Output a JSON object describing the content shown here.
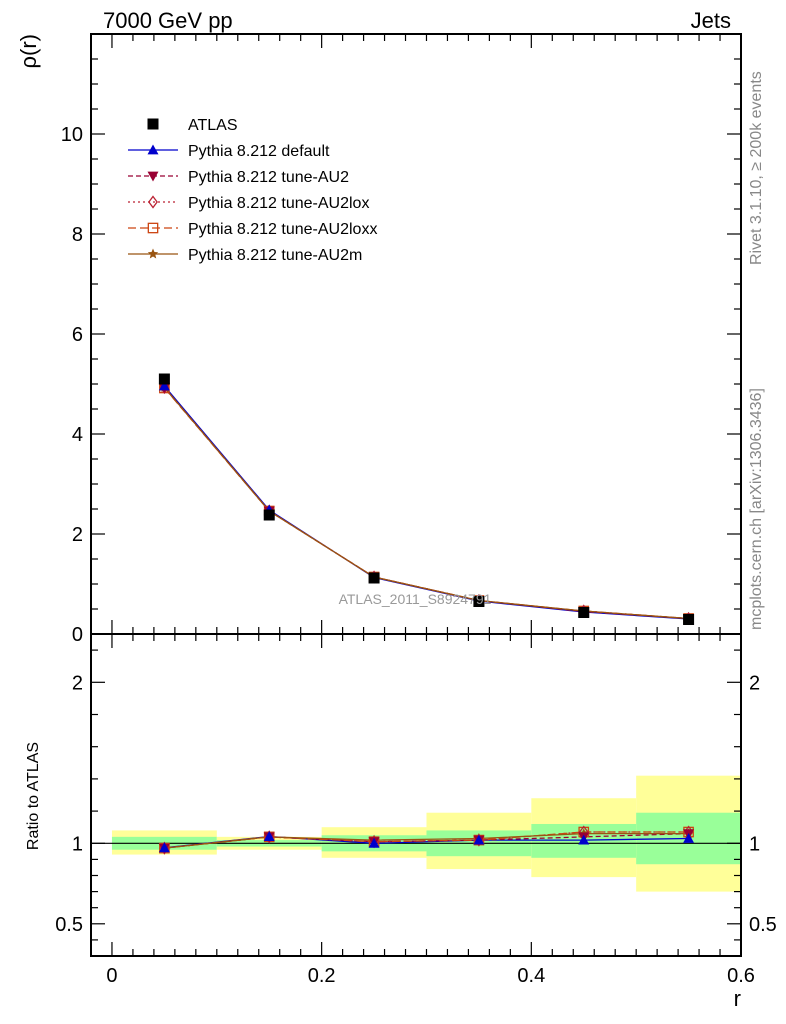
{
  "header": {
    "left_title": "7000 GeV pp",
    "right_title": "Jets"
  },
  "side_notes": {
    "rivet": "Rivet 3.1.10, ≥ 200k events",
    "mcplots": "mcplots.cern.ch [arXiv:1306.3436]"
  },
  "watermark": "ATLAS_2011_S8924791",
  "colors": {
    "data": "#000000",
    "default": "#0000cc",
    "au2": "#990033",
    "au2lox": "#bb2233",
    "au2loxx": "#cc4411",
    "au2m": "#995511",
    "band_inner": "#99ff99",
    "band_outer": "#ffff99"
  },
  "chart_data": [
    {
      "type": "line",
      "title": "7000 GeV pp  Jets",
      "xlabel": "r",
      "ylabel": "ρ(r)",
      "xlim": [
        -0.02,
        0.6
      ],
      "ylim": [
        0,
        12
      ],
      "yticks": [
        0,
        2,
        4,
        6,
        8,
        10
      ],
      "ytick_labels": [
        "0",
        "2",
        "4",
        "6",
        "8",
        "10"
      ],
      "x": [
        0.05,
        0.15,
        0.25,
        0.35,
        0.45,
        0.55
      ],
      "x_bin_edges": [
        0.0,
        0.1,
        0.2,
        0.3,
        0.4,
        0.5,
        0.6
      ],
      "legend_position": "top-left",
      "series": [
        {
          "key": "atlas",
          "name": "ATLAS",
          "marker": "square",
          "values": [
            5.1,
            2.38,
            1.12,
            0.65,
            0.43,
            0.29
          ]
        },
        {
          "key": "default",
          "name": "Pythia 8.212 default",
          "marker": "triangle-up",
          "values": [
            4.96,
            2.48,
            1.13,
            0.66,
            0.44,
            0.3
          ]
        },
        {
          "key": "au2",
          "name": "Pythia 8.212 tune-AU2",
          "marker": "triangle-down",
          "values": [
            4.93,
            2.46,
            1.14,
            0.67,
            0.45,
            0.31
          ]
        },
        {
          "key": "au2lox",
          "name": "Pythia 8.212 tune-AU2lox",
          "marker": "diamond",
          "values": [
            4.93,
            2.46,
            1.14,
            0.67,
            0.46,
            0.31
          ]
        },
        {
          "key": "au2loxx",
          "name": "Pythia 8.212 tune-AU2loxx",
          "marker": "square-open",
          "values": [
            4.92,
            2.46,
            1.14,
            0.67,
            0.46,
            0.31
          ]
        },
        {
          "key": "au2m",
          "name": "Pythia 8.212 tune-AU2m",
          "marker": "star",
          "values": [
            4.93,
            2.46,
            1.14,
            0.67,
            0.46,
            0.31
          ]
        }
      ]
    },
    {
      "type": "line",
      "title": "Ratio to ATLAS",
      "xlabel": "r",
      "ylabel": "Ratio to ATLAS",
      "xlim": [
        -0.02,
        0.6
      ],
      "ylim": [
        0.3,
        2.3
      ],
      "yticks": [
        0.5,
        1,
        2
      ],
      "ytick_labels": [
        "0.5",
        "1",
        "2"
      ],
      "xticks": [
        0,
        0.2,
        0.4,
        0.6
      ],
      "xtick_labels": [
        "0",
        "0.2",
        "0.4",
        "0.6"
      ],
      "x": [
        0.05,
        0.15,
        0.25,
        0.35,
        0.45,
        0.55
      ],
      "bands": {
        "x_bin_edges": [
          0.0,
          0.1,
          0.2,
          0.3,
          0.4,
          0.5,
          0.6
        ],
        "inner_low": [
          0.96,
          0.98,
          0.95,
          0.92,
          0.91,
          0.87
        ],
        "inner_high": [
          1.04,
          1.02,
          1.05,
          1.08,
          1.12,
          1.19
        ],
        "outer_low": [
          0.93,
          0.96,
          0.91,
          0.84,
          0.79,
          0.7
        ],
        "outer_high": [
          1.08,
          1.04,
          1.1,
          1.19,
          1.28,
          1.42
        ]
      },
      "series": [
        {
          "key": "default",
          "name": "Pythia 8.212 default",
          "values": [
            0.972,
            1.042,
            1.0,
            1.02,
            1.02,
            1.03
          ]
        },
        {
          "key": "au2",
          "name": "Pythia 8.212 tune-AU2",
          "values": [
            0.97,
            1.04,
            1.01,
            1.02,
            1.04,
            1.06
          ]
        },
        {
          "key": "au2lox",
          "name": "Pythia 8.212 tune-AU2lox",
          "values": [
            0.97,
            1.04,
            1.01,
            1.02,
            1.07,
            1.07
          ]
        },
        {
          "key": "au2loxx",
          "name": "Pythia 8.212 tune-AU2loxx",
          "values": [
            0.97,
            1.04,
            1.01,
            1.02,
            1.07,
            1.07
          ]
        },
        {
          "key": "au2m",
          "name": "Pythia 8.212 tune-AU2m",
          "values": [
            0.97,
            1.04,
            1.02,
            1.03,
            1.06,
            1.06
          ]
        }
      ]
    }
  ]
}
